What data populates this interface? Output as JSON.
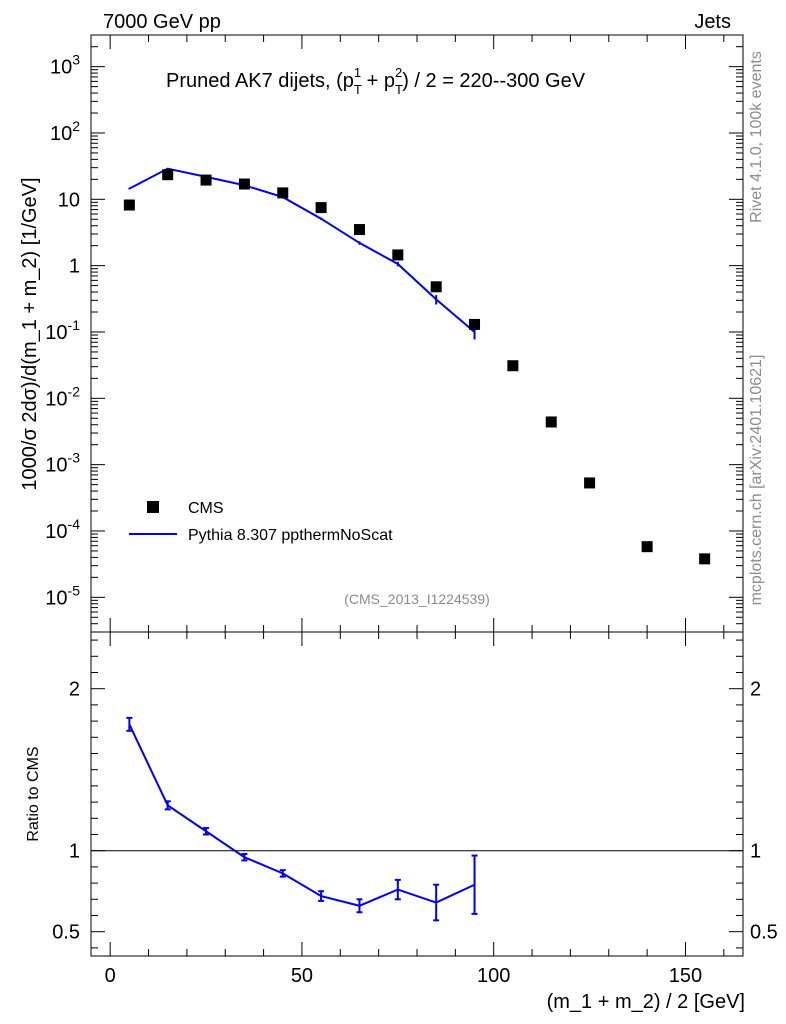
{
  "header": {
    "left": "7000 GeV pp",
    "right": "Jets"
  },
  "side_labels": {
    "top": "Rivet 4.1.0,  100k events",
    "bottom": "mcplots.cern.ch [arXiv:2401.10621]"
  },
  "chart_data": [
    {
      "type": "scatter+line",
      "title": "Pruned AK7 dijets, (p_T^1 + p_T^2) / 2 = 220--300 GeV",
      "ylabel": "1000/σ  2dσ)/d(m_1 + m_2) [1/GeV]",
      "xlabel": "(m_1 + m_2) / 2 [GeV]",
      "yscale": "log",
      "xlim": [
        -5,
        165
      ],
      "ylim": [
        3e-06,
        3000
      ],
      "y_ticks": [
        "10^{-5}",
        "10^{-4}",
        "10^{-3}",
        "10^{-2}",
        "10^{-1}",
        "1",
        "10",
        "10^{2}",
        "10^{3}"
      ],
      "watermark": "(CMS_2013_I1224539)",
      "legend": [
        "CMS",
        "Pythia 8.307 ppthermNoScat"
      ],
      "series": [
        {
          "name": "CMS",
          "style": "markers",
          "color": "#000000",
          "x": [
            5,
            15,
            25,
            35,
            45,
            55,
            65,
            75,
            85,
            95,
            105,
            115,
            125,
            140,
            155
          ],
          "y": [
            8.2,
            23.5,
            19.5,
            17.0,
            12.5,
            7.5,
            3.5,
            1.45,
            0.48,
            0.13,
            0.031,
            0.0044,
            0.00053,
            5.8e-05,
            3.8e-05
          ]
        },
        {
          "name": "Pythia 8.307 ppthermNoScat",
          "style": "line",
          "color": "#0000ee",
          "x": [
            5,
            15,
            25,
            35,
            45,
            55,
            65,
            75,
            85,
            95
          ],
          "y": [
            14.5,
            29.0,
            21.8,
            16.3,
            10.8,
            5.1,
            2.2,
            1.06,
            0.31,
            0.1
          ]
        }
      ]
    },
    {
      "type": "line",
      "ylabel": "Ratio to CMS",
      "xlabel": "(m_1 + m_2) / 2 [GeV]",
      "xlim": [
        -5,
        165
      ],
      "ylim": [
        0.35,
        2.35
      ],
      "x_ticks": [
        "0",
        "50",
        "100",
        "150"
      ],
      "y_ticks": [
        "0.5",
        "1",
        "2"
      ],
      "reference_line": 1,
      "series": [
        {
          "name": "Pythia 8.307 ppthermNoScat",
          "color": "#0000ee",
          "x": [
            5,
            15,
            25,
            35,
            45,
            55,
            65,
            75,
            85,
            95
          ],
          "y": [
            1.78,
            1.28,
            1.12,
            0.96,
            0.86,
            0.72,
            0.66,
            0.76,
            0.68,
            0.79
          ],
          "err": [
            0.04,
            0.025,
            0.02,
            0.02,
            0.02,
            0.03,
            0.04,
            0.06,
            0.11,
            0.18
          ]
        }
      ]
    }
  ]
}
